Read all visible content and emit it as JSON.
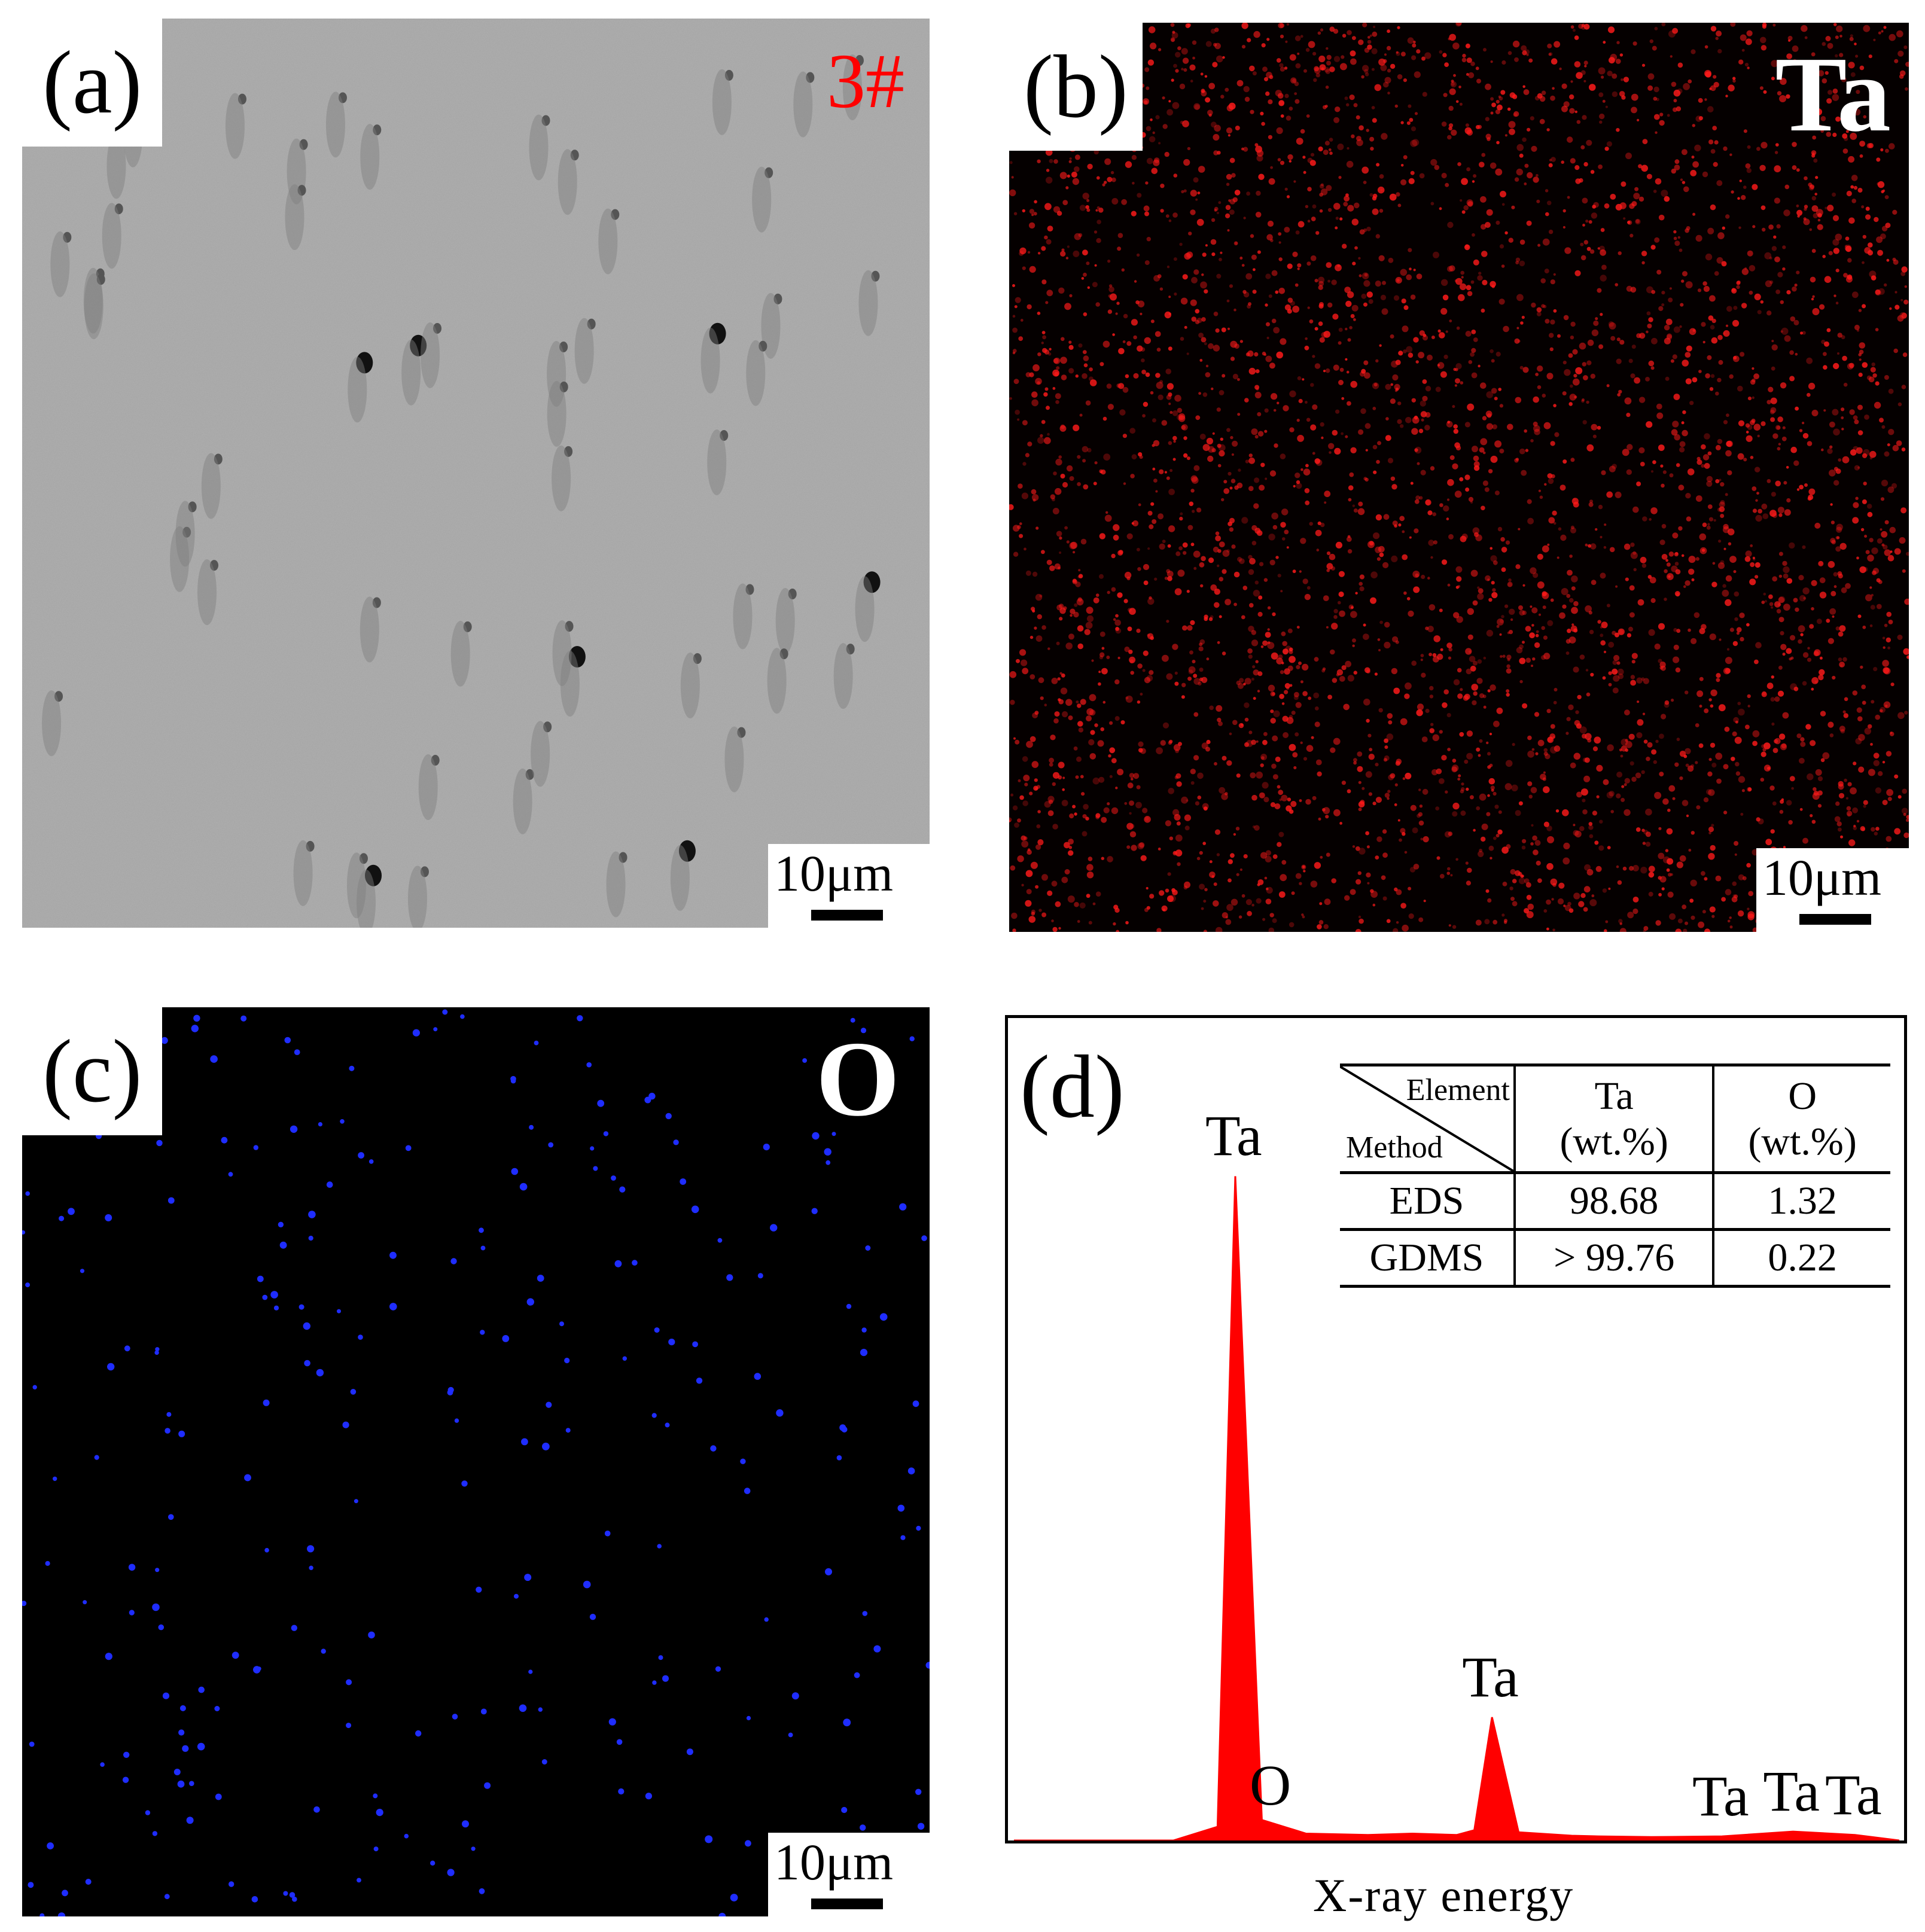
{
  "panels": {
    "a": {
      "tag": "(a)",
      "corner": "3#",
      "corner_color": "#ff0000",
      "scale": "10μm"
    },
    "b": {
      "tag": "(b)",
      "corner": "Ta",
      "corner_color": "#ffffff",
      "scale": "10μm",
      "dot_color": "#ff1a1a"
    },
    "c": {
      "tag": "(c)",
      "corner": "O",
      "corner_color": "#ffffff",
      "scale": "10μm",
      "dot_color": "#1f2dff"
    },
    "d": {
      "tag": "(d)"
    }
  },
  "table": {
    "diag_top": "Element",
    "diag_bottom": "Method",
    "col1": "Ta",
    "col1_unit": "(wt.%)",
    "col2": "O",
    "col2_unit": "(wt.%)",
    "rows": [
      {
        "method": "EDS",
        "ta": "98.68",
        "o": "1.32"
      },
      {
        "method": "GDMS",
        "ta": "> 99.76",
        "o": "0.22"
      }
    ]
  },
  "chart_data": {
    "type": "line",
    "xlabel": "X-ray energy",
    "ylabel": "",
    "series_color": "#ff0000",
    "x": [
      0,
      18,
      23,
      25,
      28,
      33,
      40,
      45,
      50,
      52,
      54,
      57,
      63,
      66,
      72,
      80,
      88,
      95,
      100
    ],
    "y": [
      0,
      0,
      2,
      97,
      3,
      1,
      0.8,
      1,
      0.8,
      1.5,
      18,
      1.2,
      0.7,
      0.6,
      0.5,
      0.6,
      1.3,
      0.8,
      0
    ],
    "peak_labels": [
      {
        "text": "Ta",
        "x": 25
      },
      {
        "text": "O",
        "x": 30
      },
      {
        "text": "Ta",
        "x": 54
      },
      {
        "text": "Ta",
        "x": 80
      },
      {
        "text": "Ta",
        "x": 88
      },
      {
        "text": "Ta",
        "x": 95
      }
    ]
  }
}
